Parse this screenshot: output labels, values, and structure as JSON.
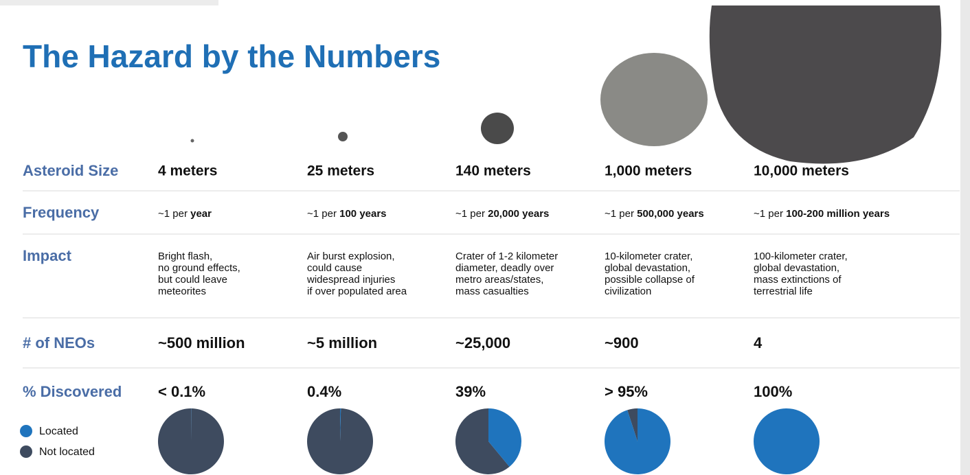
{
  "title": "The Hazard by the Numbers",
  "row_labels": {
    "size": "Asteroid Size",
    "frequency": "Frequency",
    "impact": "Impact",
    "neos": "# of NEOs",
    "discovered": "% Discovered"
  },
  "columns": [
    {
      "size": "4 meters",
      "frequency_prefix": "~1 per",
      "frequency_bold": "year",
      "impact": [
        "Bright flash,",
        "no ground effects,",
        "but could leave",
        "meteorites"
      ],
      "neos": "~500 million"
    },
    {
      "size": "25 meters",
      "frequency_prefix": "~1 per",
      "frequency_bold": "100 years",
      "impact": [
        "Air burst explosion,",
        "could cause",
        "widespread injuries",
        "if over populated area"
      ],
      "neos": "~5 million"
    },
    {
      "size": "140 meters",
      "frequency_prefix": "~1 per",
      "frequency_bold": "20,000 years",
      "impact": [
        "Crater of 1-2 kilometer",
        "diameter, deadly over",
        "metro areas/states,",
        "mass casualties"
      ],
      "neos": "~25,000"
    },
    {
      "size": "1,000 meters",
      "frequency_prefix": "~1 per",
      "frequency_bold": "500,000 years",
      "impact": [
        "10-kilometer crater,",
        "global devastation,",
        "possible collapse of",
        "civilization"
      ],
      "neos": "~900"
    },
    {
      "size": "10,000 meters",
      "frequency_prefix": "~1 per",
      "frequency_bold": "100-200 million years",
      "impact": [
        "100-kilometer crater,",
        "global devastation,",
        "mass extinctions of",
        "terrestrial life"
      ],
      "neos": "4"
    }
  ],
  "discovered": {
    "type": "pie",
    "values": [
      0.1,
      0.4,
      39,
      95,
      100
    ],
    "value_labels": [
      "< 0.1%",
      "0.4%",
      "39%",
      "> 95%",
      "100%"
    ],
    "legend": [
      {
        "name": "Located",
        "color": "#1f74bd"
      },
      {
        "name": "Not located",
        "color": "#3e4b5f"
      }
    ]
  }
}
